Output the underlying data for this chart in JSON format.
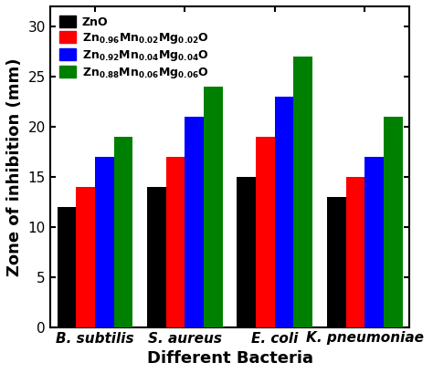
{
  "categories": [
    "B. subtilis",
    "S. aureus",
    "E. coli",
    "K. pneumoniae"
  ],
  "series": [
    {
      "label": "ZnO",
      "color": "#000000",
      "values": [
        12,
        14,
        15,
        13
      ]
    },
    {
      "label": "Zn$_{0.96}$Mn$_{0.02}$Mg$_{0.02}$O",
      "color": "#ff0000",
      "values": [
        14,
        17,
        19,
        15
      ]
    },
    {
      "label": "Zn$_{0.92}$Mn$_{0.04}$Mg$_{0.04}$O",
      "color": "#0000ff",
      "values": [
        17,
        21,
        23,
        17
      ]
    },
    {
      "label": "Zn$_{0.88}$Mn$_{0.06}$Mg$_{0.06}$O",
      "color": "#008000",
      "values": [
        19,
        24,
        27,
        21
      ]
    }
  ],
  "ylabel": "Zone of inhibition (mm)",
  "xlabel": "Different Bacteria",
  "ylim": [
    0,
    32
  ],
  "yticks": [
    0,
    5,
    10,
    15,
    20,
    25,
    30
  ],
  "bar_width": 0.21,
  "background_color": "#ffffff",
  "legend_fontsize": 9,
  "axis_label_fontsize": 13,
  "tick_fontsize": 11
}
